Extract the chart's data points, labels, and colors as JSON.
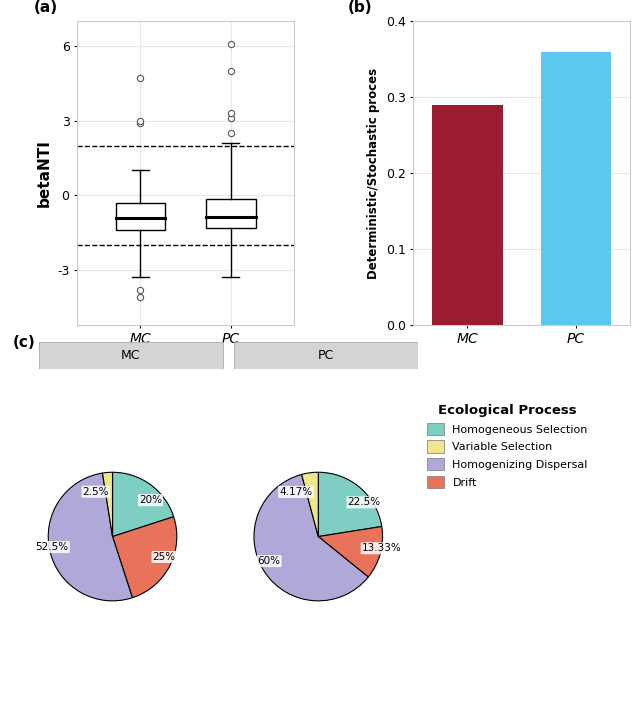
{
  "panel_labels": [
    "(a)",
    "(b)",
    "(c)"
  ],
  "boxplot": {
    "MC": {
      "median": -0.9,
      "q1": -1.4,
      "q3": -0.3,
      "whisker_low": -3.3,
      "whisker_high": 1.0,
      "outliers_above": [
        2.9,
        3.0,
        4.7
      ],
      "outliers_below": [
        -3.8,
        -4.1
      ]
    },
    "PC": {
      "median": -0.85,
      "q1": -1.3,
      "q3": -0.15,
      "whisker_low": -3.3,
      "whisker_high": 2.1,
      "outliers_above": [
        2.5,
        3.1,
        3.3,
        5.0,
        6.1
      ],
      "outliers_below": []
    },
    "hline_upper": 2.0,
    "hline_lower": -2.0,
    "ylabel": "betaNTI",
    "ylim": [
      -5.2,
      7.0
    ],
    "yticks": [
      -3,
      0,
      3,
      6
    ],
    "categories": [
      "MC",
      "PC"
    ]
  },
  "barplot": {
    "categories": [
      "MC",
      "PC"
    ],
    "values": [
      0.29,
      0.36
    ],
    "colors": [
      "#9b1b30",
      "#5bc8ef"
    ],
    "ylabel": "Deterministic/Stochastic proces",
    "ylim": [
      0,
      0.4
    ],
    "yticks": [
      0.0,
      0.1,
      0.2,
      0.3,
      0.4
    ]
  },
  "pie": {
    "MC": {
      "values": [
        20.0,
        25.0,
        52.5,
        2.5
      ],
      "labels": [
        "20%",
        "25%",
        "52.5%",
        "2.5%"
      ],
      "colors": [
        "#7ecec4",
        "#e8735a",
        "#b0a8d8",
        "#f0e68c"
      ],
      "startangle": 90,
      "counterclock": false
    },
    "PC": {
      "values": [
        22.5,
        13.33,
        60.0,
        4.17
      ],
      "labels": [
        "22.5%",
        "13.33%",
        "60%",
        "4.17%"
      ],
      "colors": [
        "#7ecec4",
        "#e8735a",
        "#b0a8d8",
        "#f0e68c"
      ],
      "startangle": 90,
      "counterclock": false
    },
    "legend_labels": [
      "Homogeneous Selection",
      "Variable Selection",
      "Homogenizing Dispersal",
      "Drift"
    ],
    "legend_colors": [
      "#7ecec4",
      "#f0e68c",
      "#b0a8d8",
      "#e8735a"
    ],
    "legend_title": "Ecological Process"
  },
  "background_color": "#ffffff",
  "grid_color": "#e8e8e8",
  "font_size": 9,
  "title_font_size": 11
}
